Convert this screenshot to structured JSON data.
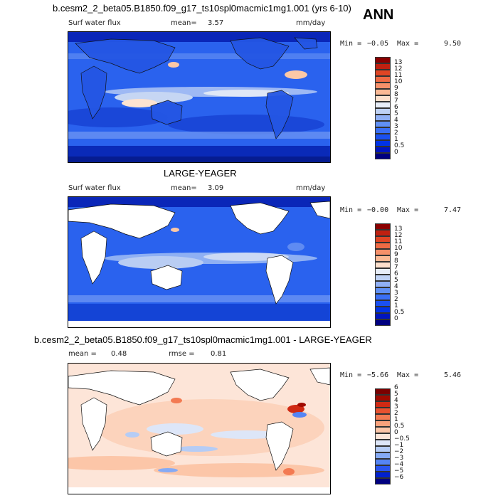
{
  "figure": {
    "main_title": "b.cesm2_2_beta05.B1850.f09_g17_ts10spl0macmic1mg1.001 (yrs 6-10)",
    "season": "ANN"
  },
  "panel1": {
    "variable": "Surf water flux",
    "mean_label": "mean=",
    "mean_value": "3.57",
    "units": "mm/day",
    "min_label": "Min =",
    "min_value": "−0.05",
    "max_label": "Max =",
    "max_value": "9.50",
    "colorbar": {
      "colors": [
        "#000080",
        "#0015c0",
        "#0033e6",
        "#1a50f0",
        "#3a6ff5",
        "#6090f5",
        "#90b0f5",
        "#bfd2f5",
        "#e8eef8",
        "#fde0cc",
        "#fbb995",
        "#f6906a",
        "#ef6a44",
        "#e04524",
        "#c02010",
        "#8a0000"
      ],
      "labels": [
        "0",
        "0.5",
        "1",
        "2",
        "3",
        "4",
        "5",
        "6",
        "7",
        "8",
        "9",
        "10",
        "11",
        "12",
        "13"
      ]
    }
  },
  "panel2": {
    "title": "LARGE-YEAGER",
    "variable": "Surf water flux",
    "mean_label": "mean=",
    "mean_value": "3.09",
    "units": "mm/day",
    "min_label": "Min =",
    "min_value": "−0.00",
    "max_label": "Max =",
    "max_value": "7.47",
    "colorbar": {
      "colors": [
        "#000080",
        "#0015c0",
        "#0033e6",
        "#1a50f0",
        "#3a6ff5",
        "#6090f5",
        "#90b0f5",
        "#bfd2f5",
        "#e8eef8",
        "#fde0cc",
        "#fbb995",
        "#f6906a",
        "#ef6a44",
        "#e04524",
        "#c02010",
        "#8a0000"
      ],
      "labels": [
        "0",
        "0.5",
        "1",
        "2",
        "3",
        "4",
        "5",
        "6",
        "7",
        "8",
        "9",
        "10",
        "11",
        "12",
        "13"
      ]
    }
  },
  "panel3": {
    "title": "b.cesm2_2_beta05.B1850.f09_g17_ts10spl0macmic1mg1.001 - LARGE-YEAGER",
    "mean_label": "mean =",
    "mean_value": "0.48",
    "rmse_label": "rmse =",
    "rmse_value": "0.81",
    "min_label": "Min =",
    "min_value": "−5.66",
    "max_label": "Max =",
    "max_value": "5.46",
    "colorbar": {
      "colors": [
        "#000080",
        "#0020d0",
        "#2a55f0",
        "#5585f5",
        "#85aaf5",
        "#b5ccf5",
        "#dde6f8",
        "#fde5d8",
        "#fcc6a8",
        "#f9a27c",
        "#f37a52",
        "#e85230",
        "#d02a14",
        "#a00a00",
        "#7a0000"
      ],
      "labels": [
        "−6",
        "−5",
        "−4",
        "−3",
        "−2",
        "−1",
        "−0.5",
        "0",
        "0.5",
        "1",
        "2",
        "3",
        "4",
        "5",
        "6"
      ]
    }
  }
}
